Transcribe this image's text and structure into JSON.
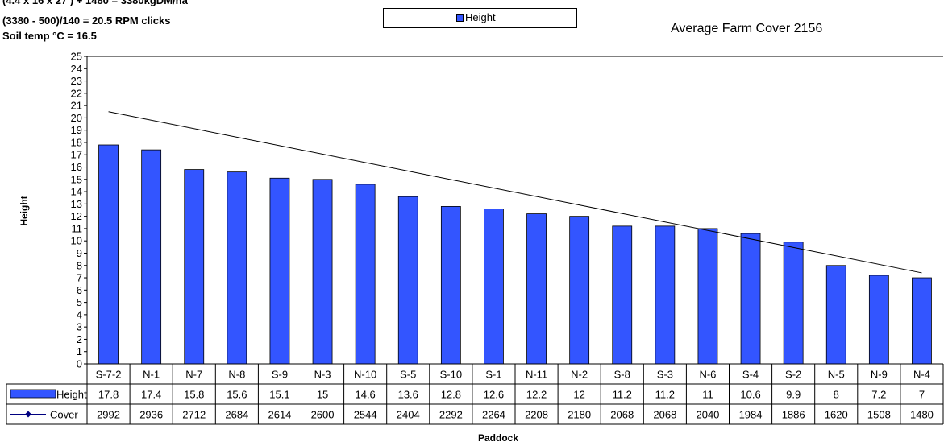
{
  "notes": [
    "(4.4 x 16 x 27 ) + 1480 = 3380kgDM/ha",
    "(3380 - 500)/140 = 20.5  RPM clicks",
    "Soil temp °C = 16.5"
  ],
  "legend_label": "Height",
  "average_cover_text": "Average Farm Cover 2156",
  "chart_data": {
    "type": "bar",
    "categories": [
      "S-7-2",
      "N-1",
      "N-7",
      "N-8",
      "S-9",
      "N-3",
      "N-10",
      "S-5",
      "S-10",
      "S-1",
      "N-11",
      "N-2",
      "S-8",
      "S-3",
      "N-6",
      "S-4",
      "S-2",
      "N-5",
      "N-9",
      "N-4"
    ],
    "series": [
      {
        "name": "Height",
        "values": [
          17.8,
          17.4,
          15.8,
          15.6,
          15.1,
          15,
          14.6,
          13.6,
          12.8,
          12.6,
          12.2,
          12,
          11.2,
          11.2,
          11,
          10.6,
          9.9,
          8,
          7.2,
          7
        ]
      },
      {
        "name": "Cover",
        "values": [
          2992,
          2936,
          2712,
          2684,
          2614,
          2600,
          2544,
          2404,
          2292,
          2264,
          2208,
          2180,
          2068,
          2068,
          2040,
          1984,
          1886,
          1620,
          1508,
          1480
        ]
      }
    ],
    "target_line": {
      "start": 20.5,
      "end": 7.4
    },
    "ylabel": "Height",
    "xlabel": "Paddock",
    "ylim": [
      0,
      25
    ],
    "yticks": [
      0,
      1,
      2,
      3,
      4,
      5,
      6,
      7,
      8,
      9,
      10,
      11,
      12,
      13,
      14,
      15,
      16,
      17,
      18,
      19,
      20,
      21,
      22,
      23,
      24,
      25
    ],
    "bar_color": "#3355ff",
    "cover_marker_color": "#000080",
    "grid": false,
    "legend_position": "top-center"
  }
}
